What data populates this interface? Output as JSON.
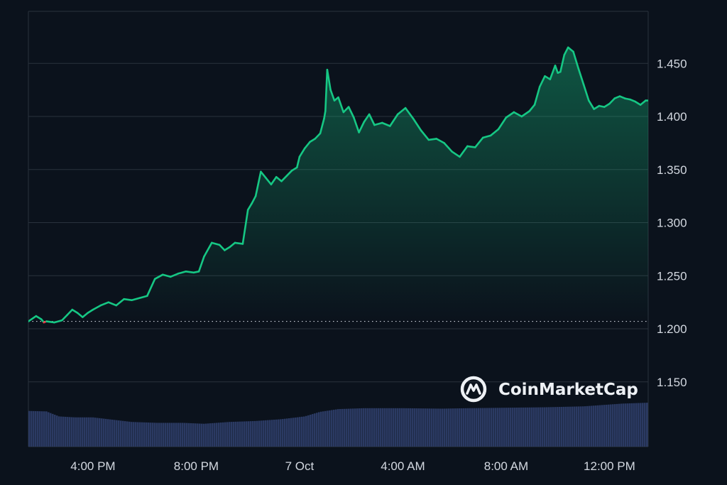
{
  "chart_data": {
    "type": "area",
    "title": "",
    "xlabel": "",
    "ylabel": "",
    "watermark": "CoinMarketCap",
    "x_ticks": [
      "4:00 PM",
      "8:00 PM",
      "7 Oct",
      "4:00 AM",
      "8:00 AM",
      "12:00 PM"
    ],
    "x_tick_hours": [
      4,
      8,
      12,
      16,
      20,
      24
    ],
    "xlim_hours": [
      1.5,
      25.5
    ],
    "y_ticks": [
      "1.150",
      "1.200",
      "1.250",
      "1.300",
      "1.350",
      "1.400",
      "1.450"
    ],
    "ylim": [
      1.089,
      1.499
    ],
    "open_price": 1.207,
    "grid": true,
    "colors": {
      "up": "#16c784",
      "down": "#ea3943",
      "volume": "#2b3a63",
      "background": "#0b121c",
      "grid": "#2a323d"
    },
    "series": [
      {
        "values": [
          [
            1.5,
            1.207
          ],
          [
            1.8,
            1.212
          ],
          [
            2.0,
            1.209
          ],
          [
            2.1,
            1.206
          ],
          [
            2.2,
            1.207
          ],
          [
            2.5,
            1.206
          ],
          [
            2.8,
            1.208
          ],
          [
            3.0,
            1.213
          ],
          [
            3.2,
            1.218
          ],
          [
            3.4,
            1.215
          ],
          [
            3.6,
            1.211
          ],
          [
            3.8,
            1.215
          ],
          [
            4.0,
            1.218
          ],
          [
            4.3,
            1.222
          ],
          [
            4.6,
            1.225
          ],
          [
            4.9,
            1.222
          ],
          [
            5.2,
            1.228
          ],
          [
            5.5,
            1.227
          ],
          [
            5.8,
            1.229
          ],
          [
            6.1,
            1.231
          ],
          [
            6.4,
            1.247
          ],
          [
            6.7,
            1.251
          ],
          [
            7.0,
            1.249
          ],
          [
            7.3,
            1.252
          ],
          [
            7.6,
            1.254
          ],
          [
            7.9,
            1.253
          ],
          [
            8.1,
            1.254
          ],
          [
            8.3,
            1.268
          ],
          [
            8.6,
            1.281
          ],
          [
            8.9,
            1.279
          ],
          [
            9.1,
            1.274
          ],
          [
            9.3,
            1.277
          ],
          [
            9.5,
            1.281
          ],
          [
            9.8,
            1.28
          ],
          [
            10.0,
            1.312
          ],
          [
            10.15,
            1.318
          ],
          [
            10.3,
            1.325
          ],
          [
            10.5,
            1.348
          ],
          [
            10.7,
            1.342
          ],
          [
            10.9,
            1.336
          ],
          [
            11.1,
            1.343
          ],
          [
            11.3,
            1.339
          ],
          [
            11.5,
            1.344
          ],
          [
            11.7,
            1.349
          ],
          [
            11.9,
            1.352
          ],
          [
            12.0,
            1.362
          ],
          [
            12.2,
            1.37
          ],
          [
            12.4,
            1.376
          ],
          [
            12.6,
            1.379
          ],
          [
            12.8,
            1.384
          ],
          [
            12.95,
            1.398
          ],
          [
            13.0,
            1.405
          ],
          [
            13.07,
            1.444
          ],
          [
            13.2,
            1.425
          ],
          [
            13.35,
            1.415
          ],
          [
            13.5,
            1.418
          ],
          [
            13.7,
            1.404
          ],
          [
            13.9,
            1.409
          ],
          [
            14.1,
            1.399
          ],
          [
            14.3,
            1.385
          ],
          [
            14.5,
            1.395
          ],
          [
            14.7,
            1.402
          ],
          [
            14.9,
            1.392
          ],
          [
            15.2,
            1.394
          ],
          [
            15.5,
            1.391
          ],
          [
            15.8,
            1.402
          ],
          [
            16.1,
            1.408
          ],
          [
            16.4,
            1.398
          ],
          [
            16.7,
            1.387
          ],
          [
            17.0,
            1.378
          ],
          [
            17.3,
            1.379
          ],
          [
            17.6,
            1.375
          ],
          [
            17.9,
            1.367
          ],
          [
            18.2,
            1.362
          ],
          [
            18.5,
            1.372
          ],
          [
            18.8,
            1.371
          ],
          [
            19.1,
            1.38
          ],
          [
            19.4,
            1.382
          ],
          [
            19.7,
            1.388
          ],
          [
            20.0,
            1.399
          ],
          [
            20.3,
            1.404
          ],
          [
            20.6,
            1.4
          ],
          [
            20.9,
            1.405
          ],
          [
            21.1,
            1.411
          ],
          [
            21.3,
            1.428
          ],
          [
            21.5,
            1.438
          ],
          [
            21.7,
            1.435
          ],
          [
            21.9,
            1.448
          ],
          [
            22.0,
            1.441
          ],
          [
            22.1,
            1.442
          ],
          [
            22.25,
            1.458
          ],
          [
            22.4,
            1.465
          ],
          [
            22.6,
            1.461
          ],
          [
            22.8,
            1.445
          ],
          [
            23.0,
            1.43
          ],
          [
            23.2,
            1.415
          ],
          [
            23.4,
            1.407
          ],
          [
            23.6,
            1.41
          ],
          [
            23.8,
            1.409
          ],
          [
            24.0,
            1.412
          ],
          [
            24.2,
            1.417
          ],
          [
            24.4,
            1.419
          ],
          [
            24.6,
            1.417
          ],
          [
            24.8,
            1.416
          ],
          [
            25.0,
            1.414
          ],
          [
            25.2,
            1.411
          ],
          [
            25.4,
            1.415
          ],
          [
            25.5,
            1.415
          ]
        ]
      }
    ],
    "volume": [
      [
        1.5,
        0.39
      ],
      [
        2.2,
        0.385
      ],
      [
        2.7,
        0.33
      ],
      [
        3.3,
        0.32
      ],
      [
        4.0,
        0.32
      ],
      [
        4.6,
        0.3
      ],
      [
        5.5,
        0.27
      ],
      [
        6.5,
        0.26
      ],
      [
        7.5,
        0.26
      ],
      [
        8.3,
        0.25
      ],
      [
        9.3,
        0.27
      ],
      [
        10.3,
        0.28
      ],
      [
        11.3,
        0.3
      ],
      [
        12.2,
        0.33
      ],
      [
        12.8,
        0.38
      ],
      [
        13.5,
        0.41
      ],
      [
        14.5,
        0.42
      ],
      [
        16.0,
        0.42
      ],
      [
        17.5,
        0.415
      ],
      [
        18.5,
        0.42
      ],
      [
        20.0,
        0.425
      ],
      [
        21.5,
        0.43
      ],
      [
        23.0,
        0.44
      ],
      [
        24.5,
        0.47
      ],
      [
        25.5,
        0.48
      ]
    ]
  }
}
